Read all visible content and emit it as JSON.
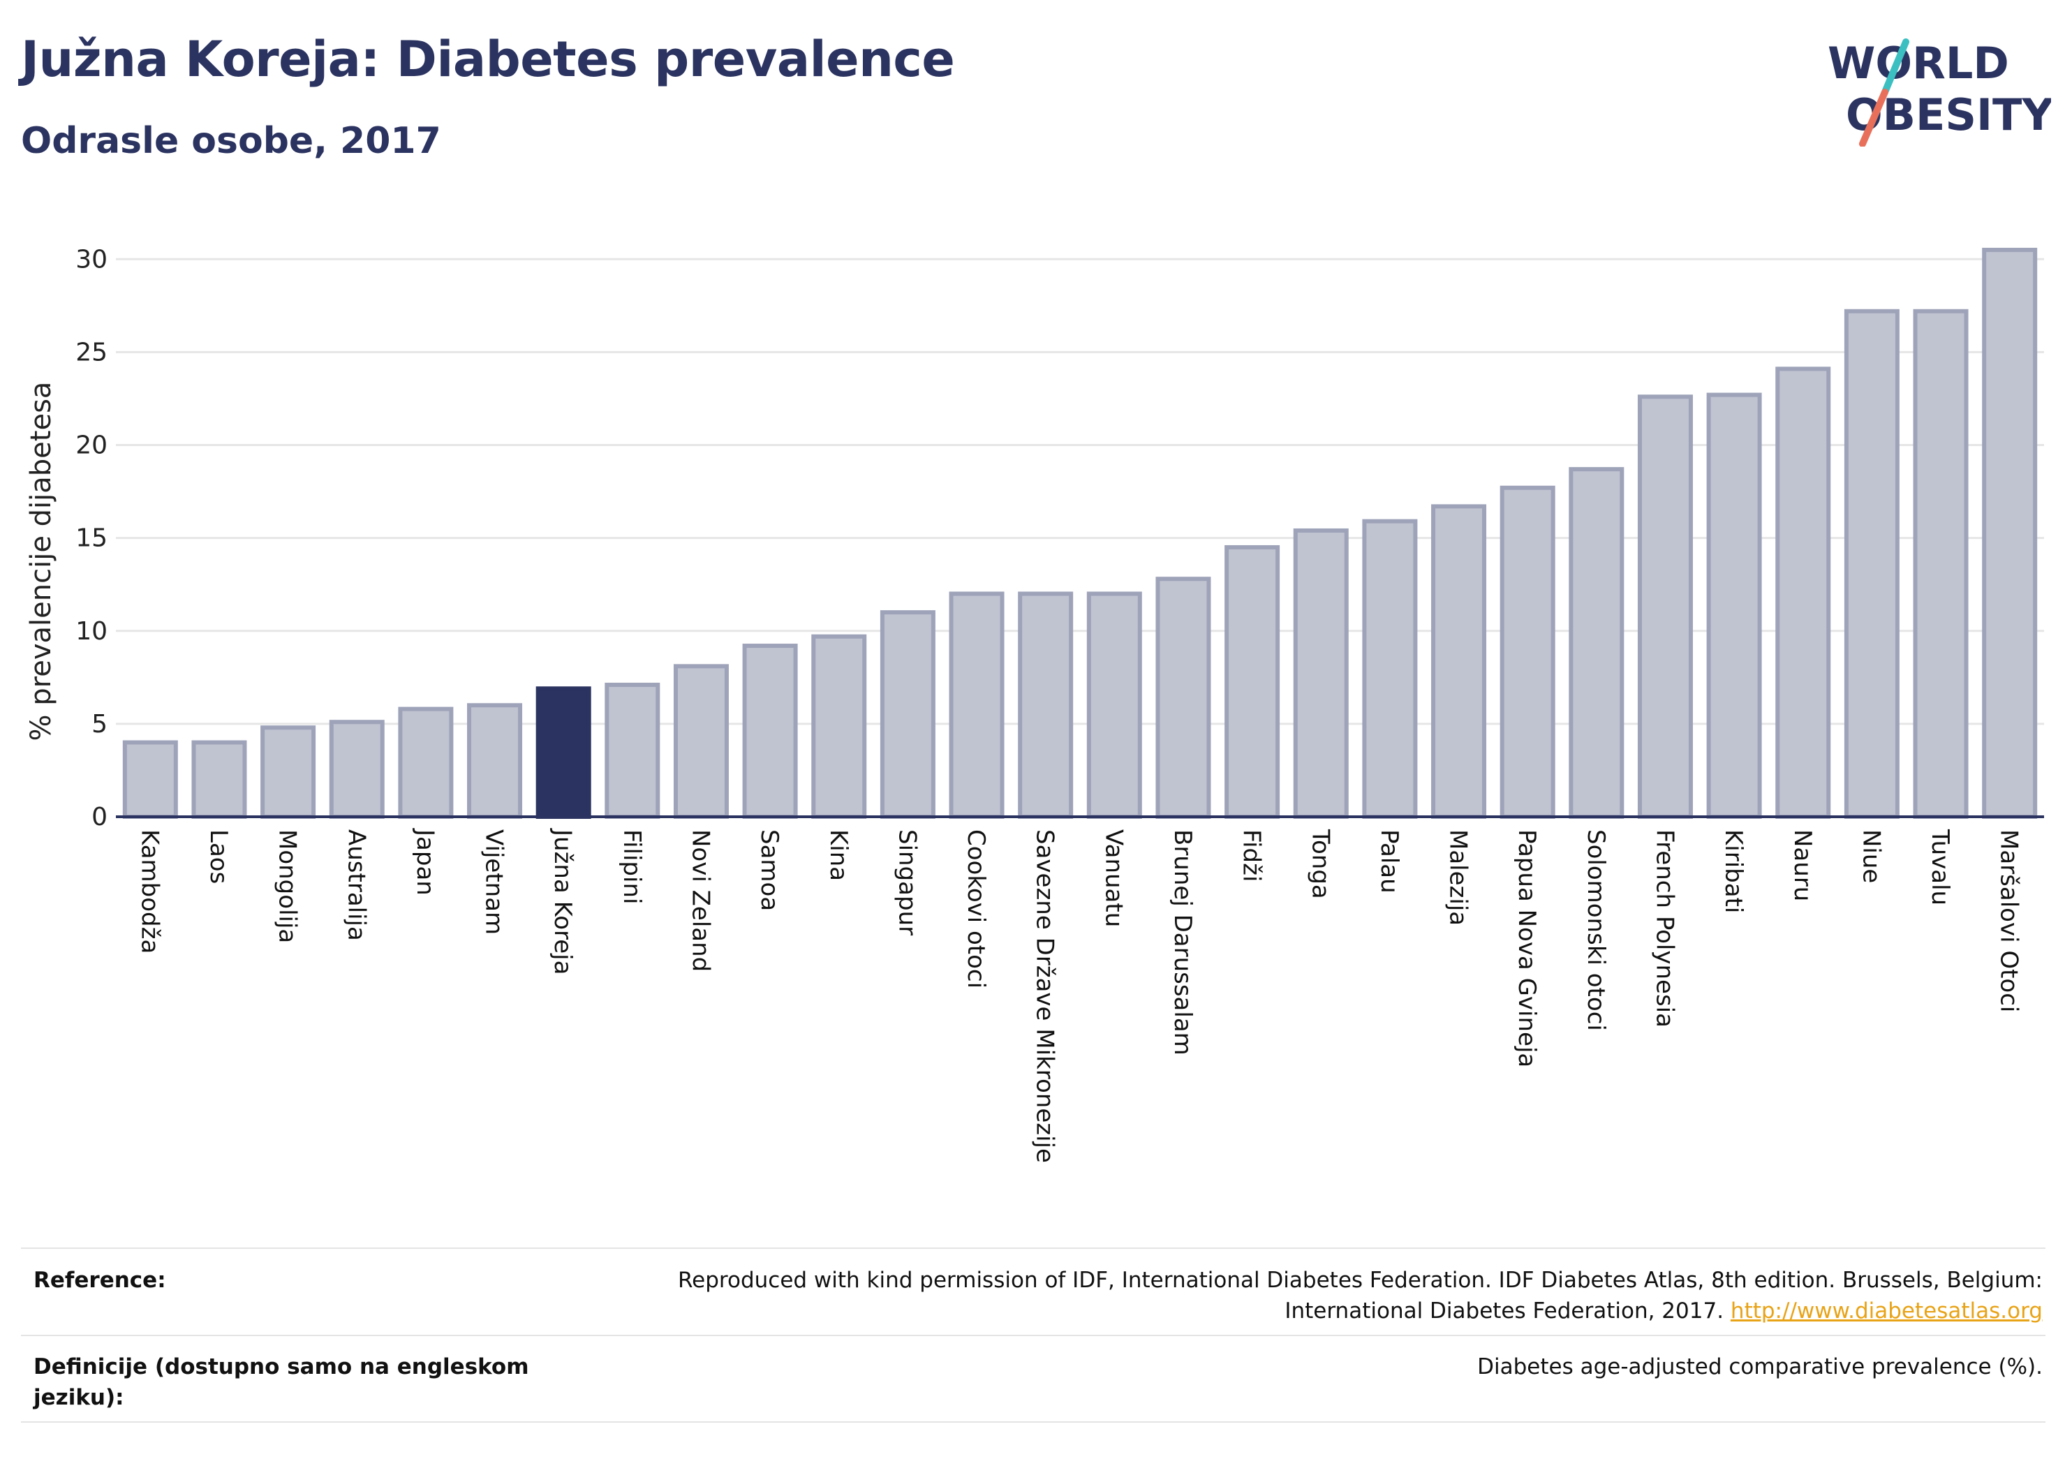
{
  "header": {
    "title": "Južna Koreja: Diabetes prevalence",
    "subtitle": "Odrasle osobe, 2017"
  },
  "logo": {
    "line1": "WORLD",
    "line2": "OBESITY",
    "text_color": "#2b3360",
    "slash_top_color": "#3bbfc1",
    "slash_bottom_color": "#e8705a"
  },
  "chart_data": {
    "type": "bar",
    "ylabel": "% prevalencije dijabetesa",
    "xlabel": "",
    "ylim": [
      0,
      32
    ],
    "yticks": [
      0,
      5,
      10,
      15,
      20,
      25,
      30
    ],
    "grid": true,
    "highlight_category": "Južna Koreja",
    "colors": {
      "bar": "#c0c3d0",
      "bar_edge": "#9ea3b9",
      "highlight": "#2b3360",
      "grid": "#e6e6e6",
      "axis": "#2b3360"
    },
    "categories": [
      "Kambodža",
      "Laos",
      "Mongolija",
      "Australija",
      "Japan",
      "Vijetnam",
      "Južna Koreja",
      "Filipini",
      "Novi Zeland",
      "Samoa",
      "Kina",
      "Singapur",
      "Cookovi otoci",
      "Savezne Države Mikronezije",
      "Vanuatu",
      "Brunej Darussalam",
      "Fidži",
      "Tonga",
      "Palau",
      "Malezija",
      "Papua Nova Gvineja",
      "Solomonski otoci",
      "French Polynesia",
      "Kiribati",
      "Nauru",
      "Niue",
      "Tuvalu",
      "Maršalovi Otoci"
    ],
    "values": [
      4.0,
      4.0,
      4.8,
      5.1,
      5.8,
      6.0,
      6.9,
      7.1,
      8.1,
      9.2,
      9.7,
      11.0,
      12.0,
      12.0,
      12.0,
      12.8,
      14.5,
      15.4,
      15.9,
      16.7,
      17.7,
      18.7,
      22.6,
      22.7,
      24.1,
      27.2,
      27.2,
      30.5
    ]
  },
  "reference": {
    "label": "Reference:",
    "text_line1": "Reproduced with kind permission of IDF, International Diabetes Federation. IDF Diabetes Atlas, 8th edition. Brussels, Belgium:",
    "text_line2": "International Diabetes Federation, 2017.",
    "link": "http://www.diabetesatlas.org"
  },
  "definition": {
    "label_line1": "Definicije (dostupno samo na engleskom",
    "label_line2": "jeziku):",
    "text": "Diabetes age-adjusted comparative prevalence (%)."
  }
}
